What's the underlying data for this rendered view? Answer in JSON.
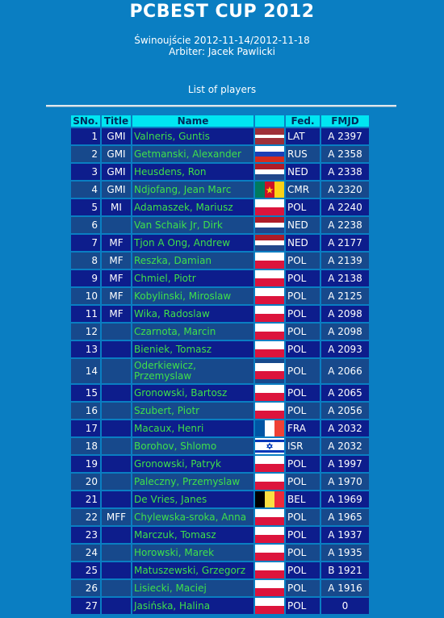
{
  "header": {
    "title": "PCBEST CUP 2012",
    "place_dates": "Świnoujście 2012-11-14/2012-11-18",
    "arbiter": "Arbiter: Jacek Pawlicki",
    "list_label": "List of players"
  },
  "table": {
    "columns": [
      "SNo.",
      "Title",
      "Name",
      "",
      "Fed.",
      "FMJD"
    ],
    "rows": [
      {
        "sno": "1",
        "title": "GMI",
        "name": "Valneris, Guntis",
        "fed": "LAT",
        "fmjd": "A 2397",
        "flag": "lat-flag"
      },
      {
        "sno": "2",
        "title": "GMI",
        "name": "Getmanski, Alexander",
        "fed": "RUS",
        "fmjd": "A 2358",
        "flag": "rus-flag"
      },
      {
        "sno": "3",
        "title": "GMI",
        "name": "Heusdens, Ron",
        "fed": "NED",
        "fmjd": "A 2338",
        "flag": "ned-flag"
      },
      {
        "sno": "4",
        "title": "GMI",
        "name": "Ndjofang, Jean Marc",
        "fed": "CMR",
        "fmjd": "A 2320",
        "flag": "cmr-flag"
      },
      {
        "sno": "5",
        "title": "MI",
        "name": "Adamaszek, Mariusz",
        "fed": "POL",
        "fmjd": "A 2240",
        "flag": "pol-flag"
      },
      {
        "sno": "6",
        "title": "",
        "name": "Van Schaik Jr, Dirk",
        "fed": "NED",
        "fmjd": "A 2238",
        "flag": "ned-flag"
      },
      {
        "sno": "7",
        "title": "MF",
        "name": "Tjon A Ong, Andrew",
        "fed": "NED",
        "fmjd": "A 2177",
        "flag": "ned-flag"
      },
      {
        "sno": "8",
        "title": "MF",
        "name": "Reszka, Damian",
        "fed": "POL",
        "fmjd": "A 2139",
        "flag": "pol-flag"
      },
      {
        "sno": "9",
        "title": "MF",
        "name": "Chmiel, Piotr",
        "fed": "POL",
        "fmjd": "A 2138",
        "flag": "pol-flag"
      },
      {
        "sno": "10",
        "title": "MF",
        "name": "Kobylinski, Miroslaw",
        "fed": "POL",
        "fmjd": "A 2125",
        "flag": "pol-flag"
      },
      {
        "sno": "11",
        "title": "MF",
        "name": "Wika, Radoslaw",
        "fed": "POL",
        "fmjd": "A 2098",
        "flag": "pol-flag"
      },
      {
        "sno": "12",
        "title": "",
        "name": "Czarnota, Marcin",
        "fed": "POL",
        "fmjd": "A 2098",
        "flag": "pol-flag"
      },
      {
        "sno": "13",
        "title": "",
        "name": "Bieniek, Tomasz",
        "fed": "POL",
        "fmjd": "A 2093",
        "flag": "pol-flag"
      },
      {
        "sno": "14",
        "title": "",
        "name": "Oderkiewicz, Przemyslaw",
        "fed": "POL",
        "fmjd": "A 2066",
        "flag": "pol-flag"
      },
      {
        "sno": "15",
        "title": "",
        "name": "Gronowski, Bartosz",
        "fed": "POL",
        "fmjd": "A 2065",
        "flag": "pol-flag"
      },
      {
        "sno": "16",
        "title": "",
        "name": "Szubert, Piotr",
        "fed": "POL",
        "fmjd": "A 2056",
        "flag": "pol-flag"
      },
      {
        "sno": "17",
        "title": "",
        "name": "Macaux, Henri",
        "fed": "FRA",
        "fmjd": "A 2032",
        "flag": "fra-flag"
      },
      {
        "sno": "18",
        "title": "",
        "name": "Borohov, Shlomo",
        "fed": "ISR",
        "fmjd": "A 2032",
        "flag": "isr-flag"
      },
      {
        "sno": "19",
        "title": "",
        "name": "Gronowski, Patryk",
        "fed": "POL",
        "fmjd": "A 1997",
        "flag": "pol-flag"
      },
      {
        "sno": "20",
        "title": "",
        "name": "Paleczny, Przemyslaw",
        "fed": "POL",
        "fmjd": "A 1970",
        "flag": "pol-flag"
      },
      {
        "sno": "21",
        "title": "",
        "name": "De Vries, Janes",
        "fed": "BEL",
        "fmjd": "A 1969",
        "flag": "bel-flag"
      },
      {
        "sno": "22",
        "title": "MFF",
        "name": "Chylewska-sroka, Anna",
        "fed": "POL",
        "fmjd": "A 1965",
        "flag": "pol-flag"
      },
      {
        "sno": "23",
        "title": "",
        "name": "Marczuk, Tomasz",
        "fed": "POL",
        "fmjd": "A 1937",
        "flag": "pol-flag"
      },
      {
        "sno": "24",
        "title": "",
        "name": "Horowski, Marek",
        "fed": "POL",
        "fmjd": "A 1935",
        "flag": "pol-flag"
      },
      {
        "sno": "25",
        "title": "",
        "name": "Matuszewski, Grzegorz",
        "fed": "POL",
        "fmjd": "B 1921",
        "flag": "pol-flag"
      },
      {
        "sno": "26",
        "title": "",
        "name": "Lisiecki, Maciej",
        "fed": "POL",
        "fmjd": "A 1916",
        "flag": "pol-flag"
      },
      {
        "sno": "27",
        "title": "",
        "name": "Jasińska, Halina",
        "fed": "POL",
        "fmjd": "0",
        "flag": "pol-flag"
      }
    ]
  }
}
